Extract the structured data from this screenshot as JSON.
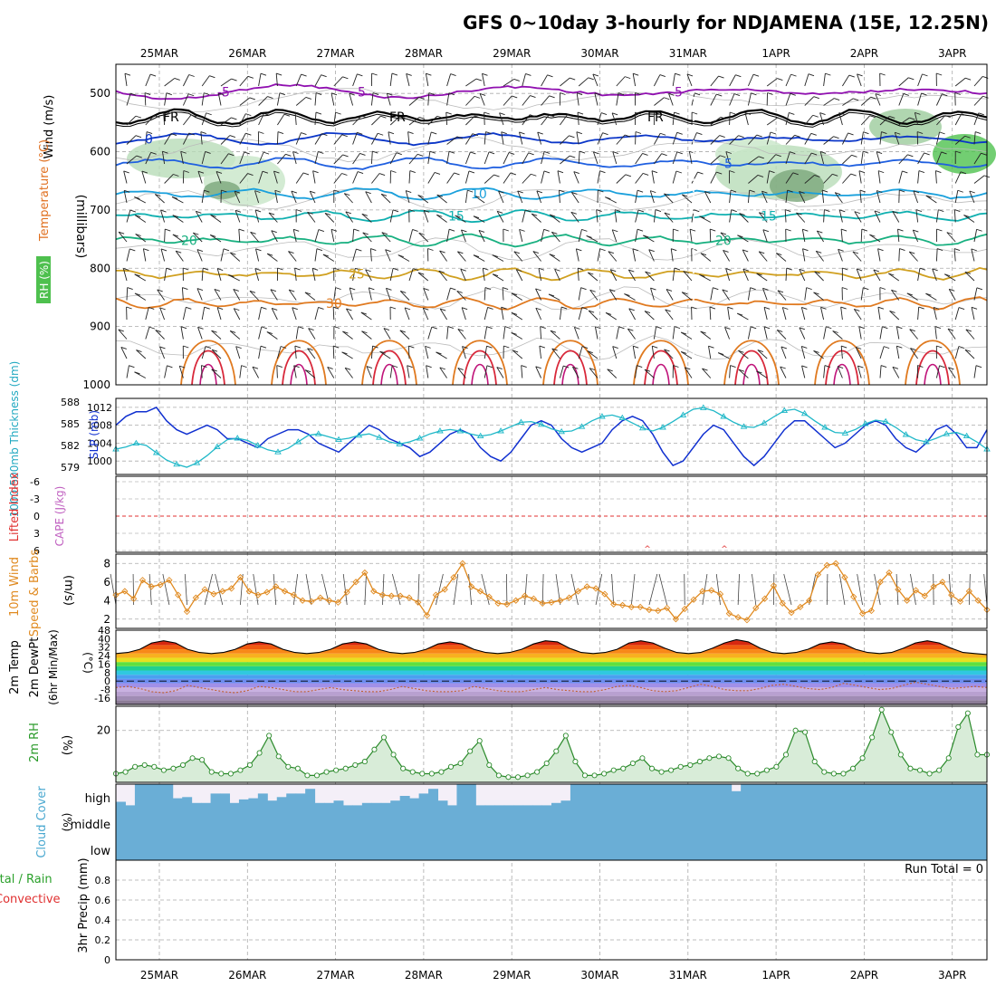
{
  "title": "GFS 0~10day 3-hourly for NDJAMENA (15E, 12.25N)",
  "dates": [
    "25MAR",
    "26MAR",
    "27MAR",
    "28MAR",
    "29MAR",
    "30MAR",
    "31MAR",
    "1APR",
    "2APR",
    "3APR"
  ],
  "chart_data": [
    {
      "id": "upper_air",
      "type": "line",
      "ylabel": "(millibars)",
      "ylim": [
        1000,
        450
      ],
      "yticks": [
        500,
        600,
        700,
        800,
        900,
        1000
      ],
      "labels": {
        "wind": "Wind (m/s)",
        "temperature": "Temperature (°C)",
        "rh": "RH (%)"
      },
      "isotherms": [
        {
          "label": "-5",
          "level": 497,
          "color": "#9010b0"
        },
        {
          "label": "FR",
          "level": 540,
          "color": "#000000"
        },
        {
          "label": "0",
          "level": 578,
          "color": "#0a35c8"
        },
        {
          "label": "5",
          "level": 620,
          "color": "#1f5fe0"
        },
        {
          "label": "10",
          "level": 672,
          "color": "#1aa0dc"
        },
        {
          "label": "15",
          "level": 710,
          "color": "#10b0b0"
        },
        {
          "label": "20",
          "level": 752,
          "color": "#18b080"
        },
        {
          "label": "25",
          "level": 810,
          "color": "#d0a020"
        },
        {
          "label": "30",
          "level": 860,
          "color": "#e07a20"
        }
      ],
      "rh_contour_label": "10"
    },
    {
      "id": "slp_thickness",
      "type": "line",
      "labels": {
        "thickness": "1000-500mb Thickness (dm)",
        "slp": "SLP (mb)"
      },
      "thickness_ticks": [
        579,
        582,
        585,
        588
      ],
      "slp_ticks": [
        1000,
        1004,
        1008,
        1012
      ],
      "series": [
        {
          "name": "SLP (mb)",
          "color": "#1030d0",
          "values": [
            1008,
            1010,
            1011,
            1011,
            1012,
            1009,
            1007,
            1006,
            1007,
            1008,
            1007,
            1005,
            1005,
            1004,
            1003,
            1005,
            1006,
            1007,
            1007,
            1006,
            1004,
            1003,
            1002,
            1004,
            1006,
            1008,
            1007,
            1005,
            1004,
            1003,
            1001,
            1002,
            1004,
            1006,
            1007,
            1006,
            1003,
            1001,
            1000,
            1002,
            1005,
            1008,
            1009,
            1008,
            1005,
            1003,
            1002,
            1003,
            1004,
            1007,
            1009,
            1010,
            1009,
            1006,
            1002,
            999,
            1000,
            1003,
            1006,
            1008,
            1007,
            1004,
            1001,
            999,
            1001,
            1004,
            1007,
            1009,
            1009,
            1007,
            1005,
            1003,
            1004,
            1006,
            1008,
            1009,
            1008,
            1005,
            1003,
            1002,
            1004,
            1007,
            1008,
            1006,
            1003,
            1003,
            1007
          ]
        },
        {
          "name": "1000-500mb Thickness (dm)",
          "color": "#20b8c8",
          "values": [
            581.5,
            581.8,
            582.3,
            582.0,
            581.0,
            580.0,
            579.4,
            579.0,
            579.6,
            580.6,
            581.8,
            582.8,
            583.0,
            582.7,
            582.0,
            581.4,
            581.1,
            581.6,
            582.5,
            583.4,
            583.6,
            583.2,
            582.8,
            583.0,
            583.4,
            583.6,
            583.1,
            582.5,
            582.2,
            582.5,
            583.0,
            583.6,
            584.0,
            584.2,
            584.0,
            583.6,
            583.3,
            583.5,
            584.0,
            584.6,
            585.2,
            585.3,
            584.9,
            584.3,
            583.9,
            584.0,
            584.6,
            585.4,
            586.0,
            586.2,
            585.8,
            585.1,
            584.4,
            584.0,
            584.5,
            585.3,
            586.2,
            587.0,
            587.2,
            586.8,
            586.0,
            585.2,
            584.6,
            584.5,
            585.1,
            586.0,
            586.8,
            587.0,
            586.4,
            585.4,
            584.5,
            583.8,
            583.7,
            584.2,
            585.0,
            585.5,
            585.3,
            584.5,
            583.5,
            582.8,
            582.5,
            583.0,
            583.6,
            583.8,
            583.3,
            582.5,
            581.5
          ]
        }
      ]
    },
    {
      "id": "lifted_index_cape",
      "type": "line",
      "labels": {
        "li": "Lifted Index",
        "cape": "CAPE (J/kg)"
      },
      "yticks": [
        "-6",
        "-3",
        "0",
        "3",
        "6"
      ]
    },
    {
      "id": "wind10m",
      "type": "line",
      "labels": {
        "main": "10m Wind",
        "sub": "Speed & Barbs",
        "unit": "(m/s)"
      },
      "ylim": [
        1,
        9
      ],
      "yticks": [
        2,
        4,
        6,
        8
      ],
      "series": [
        {
          "name": "10m Wind Speed (m/s)",
          "color": "#e08a20",
          "values": [
            4.6,
            5.0,
            4.2,
            6.2,
            5.5,
            5.7,
            6.2,
            4.6,
            2.8,
            4.3,
            5.2,
            4.7,
            5.0,
            5.3,
            6.5,
            5.0,
            4.6,
            4.9,
            5.5,
            5.0,
            4.6,
            4.0,
            3.9,
            4.3,
            4.0,
            3.8,
            4.9,
            6.0,
            7.0,
            5.0,
            4.6,
            4.5,
            4.5,
            4.3,
            3.8,
            2.4,
            4.6,
            5.2,
            6.5,
            8.0,
            5.5,
            5.0,
            4.4,
            3.7,
            3.6,
            4.0,
            4.5,
            4.2,
            3.7,
            3.8,
            4.0,
            4.3,
            5.0,
            5.5,
            5.3,
            4.7,
            3.6,
            3.5,
            3.3,
            3.3,
            3.0,
            2.9,
            3.2,
            2.0,
            3.1,
            4.1,
            5.0,
            5.1,
            4.7,
            2.6,
            2.2,
            1.9,
            3.2,
            4.2,
            5.6,
            3.7,
            2.7,
            3.3,
            4.0,
            6.8,
            7.8,
            8.0,
            6.5,
            4.4,
            2.6,
            2.9,
            6.0,
            7.0,
            5.2,
            4.0,
            5.1,
            4.5,
            5.5,
            6.0,
            4.6,
            3.9,
            5.0,
            4.0,
            3.0
          ]
        }
      ]
    },
    {
      "id": "temp2m",
      "type": "area",
      "labels": {
        "a": "2m Temp",
        "b": "2m DewPt",
        "c": "(6hr Min/Max)",
        "unit": "(°C)"
      },
      "ylim": [
        -22,
        48
      ],
      "yticks": [
        -16,
        -8,
        0,
        8,
        16,
        24,
        32,
        40,
        48
      ],
      "series": [
        {
          "name": "2m Temp (°C)",
          "values": [
            26,
            27,
            30,
            36,
            38,
            36,
            30,
            27,
            26,
            27,
            30,
            35,
            37,
            35,
            30,
            27,
            26,
            27,
            30,
            35,
            37,
            35,
            30,
            27,
            26,
            27,
            30,
            35,
            37,
            35,
            30,
            27,
            26,
            27,
            30,
            35,
            38,
            37,
            31,
            27,
            26,
            27,
            30,
            36,
            38,
            36,
            31,
            27,
            26,
            27,
            31,
            36,
            39,
            37,
            31,
            27,
            26,
            27,
            30,
            35,
            37,
            35,
            30,
            27,
            26,
            27,
            31,
            36,
            38,
            36,
            31,
            27,
            26,
            25
          ]
        },
        {
          "name": "2m DewPt (°C)",
          "values": [
            -6,
            -5,
            -7,
            -10,
            -11,
            -9,
            -4,
            -6,
            -8,
            -10,
            -11,
            -9,
            -5,
            -6,
            -8,
            -10,
            -10,
            -8,
            -6,
            -8,
            -9,
            -10,
            -10,
            -8,
            -5,
            -7,
            -9,
            -10,
            -10,
            -9,
            -5,
            -7,
            -9,
            -10,
            -10,
            -8,
            -6,
            -8,
            -9,
            -10,
            -10,
            -8,
            -5,
            -4,
            -6,
            -9,
            -10,
            -9,
            -6,
            -3,
            -5,
            -8,
            -9,
            -9,
            -7,
            -4,
            -3,
            -5,
            -7,
            -8,
            -6,
            -2,
            -4,
            -6,
            -8,
            -7,
            -4,
            -1,
            -3,
            -5,
            -7,
            -6,
            -5,
            -6
          ]
        }
      ]
    },
    {
      "id": "rh2m",
      "type": "area",
      "labels": {
        "main": "2m RH",
        "unit": "(%)"
      },
      "ylim": [
        5,
        27
      ],
      "yticks": [
        20
      ],
      "series": [
        {
          "name": "2m RH (%)",
          "values": [
            7.5,
            8.0,
            9.5,
            10.0,
            9.5,
            8.5,
            9.0,
            10.0,
            12.0,
            11.5,
            8.0,
            7.5,
            7.5,
            8.5,
            10.0,
            13.5,
            18.5,
            12.5,
            9.5,
            9.0,
            7.0,
            7.0,
            8.0,
            8.5,
            9.0,
            10.0,
            11.0,
            14.5,
            18.0,
            13.0,
            9.0,
            8.0,
            7.5,
            7.5,
            8.0,
            9.5,
            10.5,
            14.0,
            17.0,
            10.0,
            7.0,
            6.5,
            6.5,
            7.0,
            8.0,
            10.5,
            14.0,
            18.5,
            11.0,
            7.0,
            7.0,
            7.5,
            8.5,
            9.0,
            10.5,
            12.0,
            9.0,
            8.0,
            8.5,
            9.5,
            10.0,
            11.0,
            12.0,
            12.5,
            12.0,
            9.0,
            7.5,
            7.5,
            8.5,
            9.5,
            13.0,
            20.0,
            19.5,
            11.0,
            8.0,
            7.5,
            7.5,
            9.0,
            12.0,
            18.0,
            26.0,
            19.5,
            13.0,
            9.0,
            8.5,
            7.5,
            8.5,
            12.0,
            21.0,
            25.0,
            13.0,
            13.0
          ]
        }
      ]
    },
    {
      "id": "cloud_cover",
      "type": "area",
      "labels": {
        "main": "Cloud Cover",
        "unit": "(%)"
      },
      "levels": [
        "high",
        "middle",
        "low"
      ],
      "series": [
        {
          "name": "high cloud (%)",
          "values": [
            25,
            10,
            100,
            100,
            100,
            100,
            40,
            45,
            20,
            20,
            60,
            60,
            20,
            35,
            40,
            60,
            30,
            45,
            60,
            60,
            80,
            20,
            20,
            30,
            10,
            10,
            20,
            20,
            20,
            30,
            50,
            40,
            60,
            80,
            30,
            10,
            100,
            100,
            10,
            10,
            10,
            10,
            10,
            10,
            10,
            10,
            20,
            30,
            100,
            100,
            100,
            100,
            100,
            100,
            100,
            100,
            100,
            100,
            100,
            100,
            100,
            100,
            100,
            100,
            100,
            70,
            100,
            100,
            100,
            100,
            100,
            100,
            100,
            100,
            100,
            100,
            100,
            100,
            100,
            100,
            100,
            100,
            100,
            100,
            100,
            100,
            100,
            100,
            100,
            100,
            100,
            100
          ]
        }
      ]
    },
    {
      "id": "precip",
      "type": "bar",
      "labels": {
        "a": "3hr Precip (mm)",
        "total": "Total / Rain",
        "conv": "Convective",
        "run_total": "Run Total = 0"
      },
      "ylim": [
        0,
        1.0
      ],
      "yticks": [
        "0",
        "0.2",
        "0.4",
        "0.6",
        "0.8"
      ],
      "values": []
    }
  ]
}
